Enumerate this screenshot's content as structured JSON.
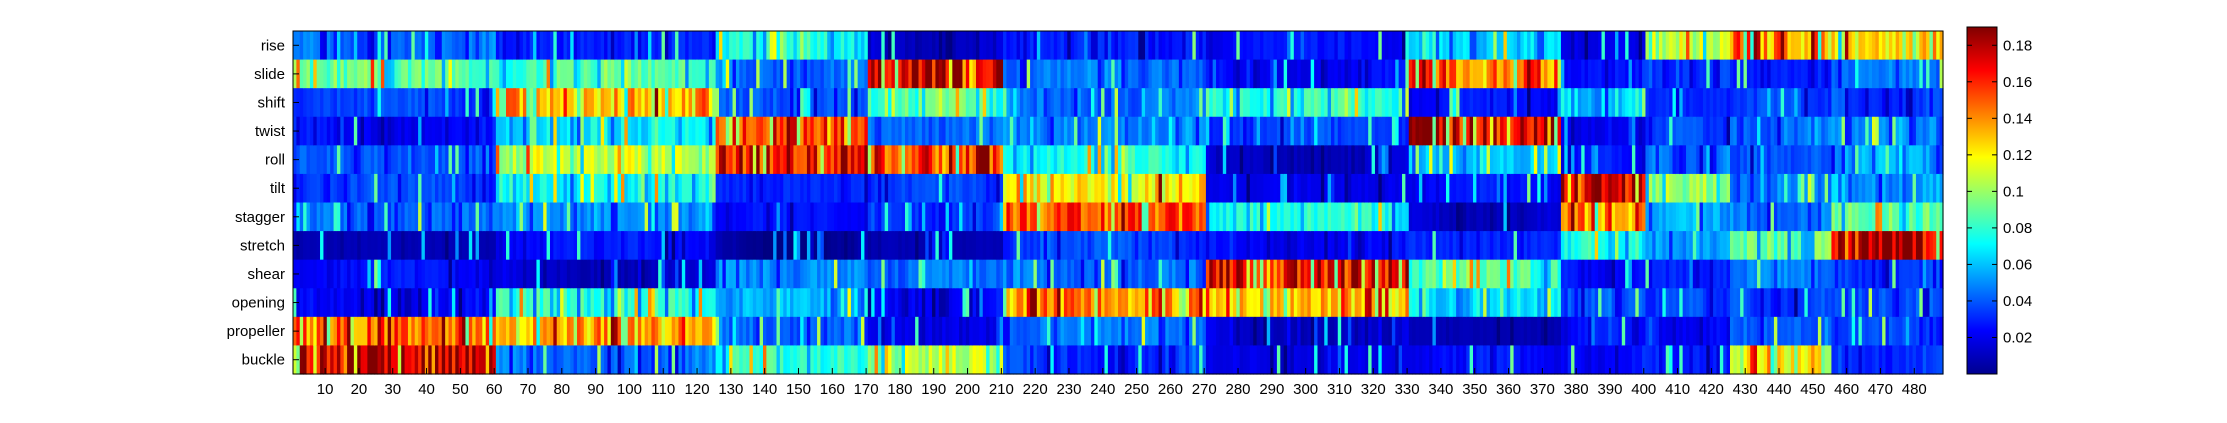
{
  "chart_data": {
    "type": "heatmap",
    "title": "",
    "xlabel": "",
    "ylabel": "",
    "rows": [
      "rise",
      "slide",
      "shift",
      "twist",
      "roll",
      "tilt",
      "stagger",
      "stretch",
      "shear",
      "opening",
      "propeller",
      "buckle"
    ],
    "xlim": [
      0.5,
      488.5
    ],
    "x_ticks": [
      10,
      20,
      30,
      40,
      50,
      60,
      70,
      80,
      90,
      100,
      110,
      120,
      130,
      140,
      150,
      160,
      170,
      180,
      190,
      200,
      210,
      220,
      230,
      240,
      250,
      260,
      270,
      280,
      290,
      300,
      310,
      320,
      330,
      340,
      350,
      360,
      370,
      380,
      390,
      400,
      410,
      420,
      430,
      440,
      450,
      460,
      470,
      480
    ],
    "colormap": "jet",
    "clim": [
      0,
      0.19
    ],
    "colorbar_ticks": [
      0.02,
      0.04,
      0.06,
      0.08,
      0.1,
      0.12,
      0.14,
      0.16,
      0.18
    ],
    "colorbar_tick_labels": [
      "0.02",
      "0.04",
      "0.06",
      "0.08",
      "0.1",
      "0.12",
      "0.14",
      "0.16",
      "0.18"
    ],
    "segments": [
      {
        "x_start": 1,
        "x_end": 60,
        "levels": [
          0.05,
          0.09,
          0.03,
          0.03,
          0.04,
          0.03,
          0.05,
          0.01,
          0.02,
          0.03,
          0.15,
          0.17
        ]
      },
      {
        "x_start": 61,
        "x_end": 125,
        "levels": [
          0.03,
          0.08,
          0.14,
          0.07,
          0.1,
          0.08,
          0.05,
          0.02,
          0.02,
          0.08,
          0.13,
          0.05
        ]
      },
      {
        "x_start": 126,
        "x_end": 170,
        "levels": [
          0.07,
          0.05,
          0.04,
          0.15,
          0.17,
          0.03,
          0.02,
          0.01,
          0.05,
          0.05,
          0.05,
          0.08
        ]
      },
      {
        "x_start": 171,
        "x_end": 210,
        "levels": [
          0.02,
          0.18,
          0.08,
          0.05,
          0.16,
          0.03,
          0.04,
          0.01,
          0.04,
          0.03,
          0.02,
          0.1
        ]
      },
      {
        "x_start": 211,
        "x_end": 270,
        "levels": [
          0.03,
          0.04,
          0.05,
          0.05,
          0.07,
          0.13,
          0.15,
          0.03,
          0.05,
          0.14,
          0.04,
          0.04
        ]
      },
      {
        "x_start": 271,
        "x_end": 330,
        "levels": [
          0.02,
          0.03,
          0.08,
          0.03,
          0.02,
          0.02,
          0.07,
          0.03,
          0.17,
          0.12,
          0.02,
          0.02
        ]
      },
      {
        "x_start": 331,
        "x_end": 375,
        "levels": [
          0.07,
          0.15,
          0.02,
          0.18,
          0.06,
          0.02,
          0.02,
          0.03,
          0.08,
          0.07,
          0.01,
          0.02
        ]
      },
      {
        "x_start": 376,
        "x_end": 400,
        "levels": [
          0.02,
          0.02,
          0.07,
          0.02,
          0.02,
          0.18,
          0.14,
          0.07,
          0.03,
          0.04,
          0.02,
          0.03
        ]
      },
      {
        "x_start": 401,
        "x_end": 425,
        "levels": [
          0.1,
          0.04,
          0.03,
          0.03,
          0.05,
          0.1,
          0.05,
          0.06,
          0.03,
          0.03,
          0.03,
          0.03
        ]
      },
      {
        "x_start": 426,
        "x_end": 455,
        "levels": [
          0.15,
          0.03,
          0.03,
          0.05,
          0.04,
          0.04,
          0.05,
          0.09,
          0.04,
          0.04,
          0.04,
          0.11
        ]
      },
      {
        "x_start": 456,
        "x_end": 488,
        "levels": [
          0.12,
          0.04,
          0.04,
          0.05,
          0.05,
          0.06,
          0.09,
          0.18,
          0.04,
          0.04,
          0.03,
          0.04
        ]
      }
    ]
  }
}
